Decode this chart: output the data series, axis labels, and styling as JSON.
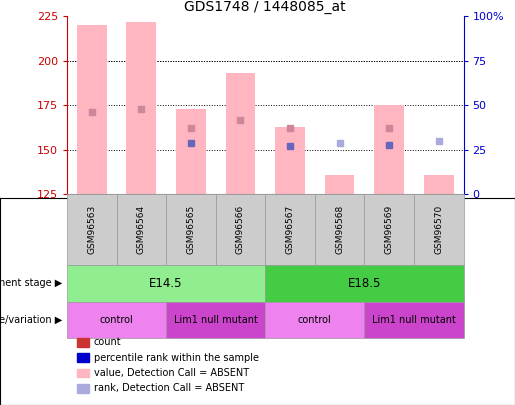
{
  "title": "GDS1748 / 1448085_at",
  "samples": [
    "GSM96563",
    "GSM96564",
    "GSM96565",
    "GSM96566",
    "GSM96567",
    "GSM96568",
    "GSM96569",
    "GSM96570"
  ],
  "bar_top": [
    220,
    222,
    173,
    193,
    163,
    136,
    175,
    136
  ],
  "bar_bottom": 125,
  "pink_marker": [
    171,
    173,
    162,
    167,
    162,
    null,
    162,
    null
  ],
  "blue_marker": [
    null,
    null,
    154,
    null,
    152,
    null,
    153,
    null
  ],
  "rank_absent": [
    null,
    null,
    null,
    null,
    null,
    154,
    null,
    155
  ],
  "ylim_left": [
    125,
    225
  ],
  "ylim_right": [
    0,
    100
  ],
  "yticks_left": [
    125,
    150,
    175,
    200,
    225
  ],
  "yticks_right": [
    0,
    25,
    50,
    75,
    100
  ],
  "yticklabels_right": [
    "0",
    "25",
    "50",
    "75",
    "100%"
  ],
  "bar_color_pink": "#FFB6C1",
  "left_axis_color": "#CC0000",
  "right_axis_color": "#0000CC",
  "dev_stage_groups": [
    {
      "label": "E14.5",
      "start": 0,
      "end": 3,
      "color": "#90EE90"
    },
    {
      "label": "E18.5",
      "start": 4,
      "end": 7,
      "color": "#44CC44"
    }
  ],
  "geno_groups": [
    {
      "label": "control",
      "start": 0,
      "end": 1,
      "color": "#EE82EE"
    },
    {
      "label": "Lim1 null mutant",
      "start": 2,
      "end": 3,
      "color": "#CC44CC"
    },
    {
      "label": "control",
      "start": 4,
      "end": 5,
      "color": "#EE82EE"
    },
    {
      "label": "Lim1 null mutant",
      "start": 6,
      "end": 7,
      "color": "#CC44CC"
    }
  ],
  "legend_items": [
    {
      "label": "count",
      "color": "#CC3333"
    },
    {
      "label": "percentile rank within the sample",
      "color": "#0000CC"
    },
    {
      "label": "value, Detection Call = ABSENT",
      "color": "#FFB6C1"
    },
    {
      "label": "rank, Detection Call = ABSENT",
      "color": "#AAAADD"
    }
  ],
  "bar_width": 0.6,
  "title_fontsize": 10
}
